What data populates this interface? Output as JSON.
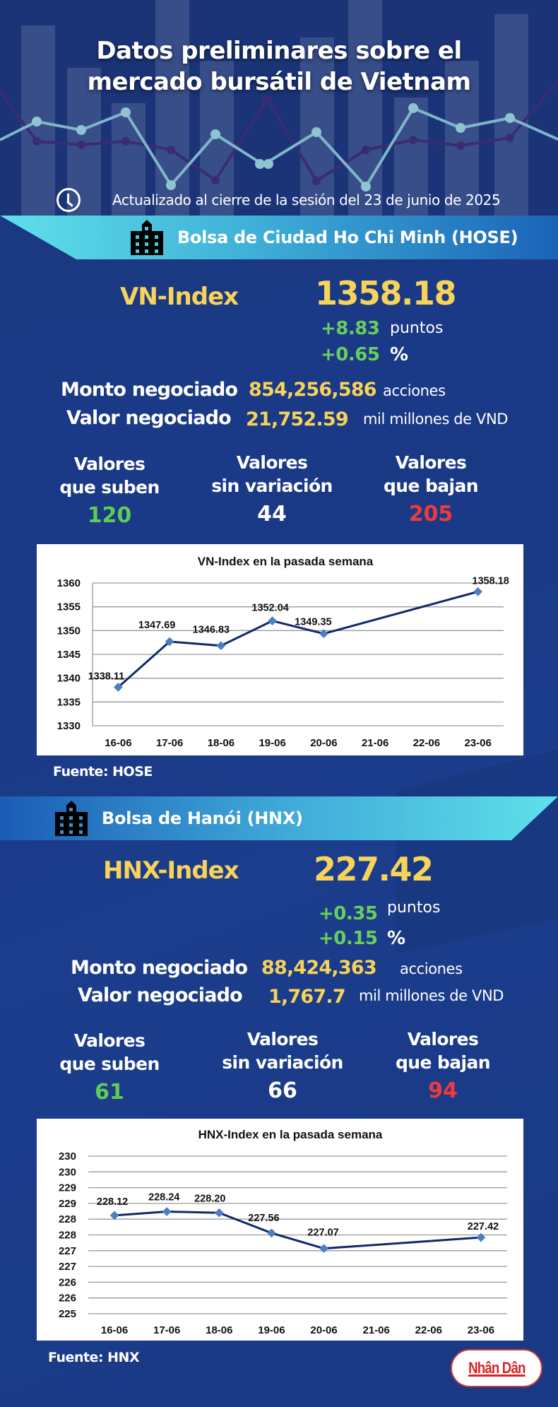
{
  "header": {
    "title_line1": "Datos preliminares sobre el",
    "title_line2": "mercado bursátil de Vietnam",
    "updated": "Actualizado al cierre de la sesión del 23 de junio de 2025",
    "clock_icon": "clock-icon"
  },
  "hose": {
    "banner": "Bolsa de Ciudad Ho Chi Minh (HOSE)",
    "index_name": "VN-Index",
    "index_value": "1358.18",
    "change_points": "+8.83",
    "change_points_unit": "puntos",
    "change_pct": "+0.65",
    "change_pct_unit": "%",
    "volume_label": "Monto negociado",
    "volume_value": "854,256,586",
    "volume_unit": "acciones",
    "value_label": "Valor negociado",
    "value_value": "21,752.59",
    "value_unit": "mil millones de VND",
    "advancers_label_1": "Valores",
    "advancers_label_2": "que suben",
    "advancers": "120",
    "unchanged_label_1": "Valores",
    "unchanged_label_2": "sin variación",
    "unchanged": "44",
    "decliners_label_1": "Valores",
    "decliners_label_2": "que bajan",
    "decliners": "205",
    "source": "Fuente: HOSE"
  },
  "hnx": {
    "banner": "Bolsa de Hanói (HNX)",
    "index_name": "HNX-Index",
    "index_value": "227.42",
    "change_points": "+0.35",
    "change_points_unit": "puntos",
    "change_pct": "+0.15",
    "change_pct_unit": "%",
    "volume_label": "Monto negociado",
    "volume_value": "88,424,363",
    "volume_unit": "acciones",
    "value_label": "Valor negociado",
    "value_value": "1,767.7",
    "value_unit": "mil millones de VND",
    "advancers_label_1": "Valores",
    "advancers_label_2": "que suben",
    "advancers": "61",
    "unchanged_label_1": "Valores",
    "unchanged_label_2": "sin variación",
    "unchanged": "66",
    "decliners_label_1": "Valores",
    "decliners_label_2": "que bajan",
    "decliners": "94",
    "source": "Fuente:  HNX"
  },
  "logo": "Nhân Dân",
  "colors": {
    "background": "#1a3780",
    "index_yellow": "#f7d35a",
    "up_green": "#5fcc52",
    "down_red": "#ef3a3d",
    "line_navy": "#0f2a6b",
    "marker_blue": "#4a7fc1"
  },
  "chart_data": [
    {
      "type": "line",
      "title": "VN-Index en la pasada semana",
      "categories": [
        "16-06",
        "17-06",
        "18-06",
        "19-06",
        "20-06",
        "21-06",
        "22-06",
        "23-06"
      ],
      "x_points": [
        "16-06",
        "17-06",
        "18-06",
        "19-06",
        "20-06",
        "23-06"
      ],
      "values": [
        1338.11,
        1347.69,
        1346.83,
        1352.04,
        1349.35,
        1358.18
      ],
      "data_labels": [
        "1338.11",
        "1347.69",
        "1346.83",
        "1352.04",
        "1349.35",
        "1358.18"
      ],
      "yticks": [
        "1360",
        "1355",
        "1350",
        "1345",
        "1340",
        "1335",
        "1330"
      ],
      "ylim": [
        1330,
        1360
      ],
      "xlabel": "",
      "ylabel": "",
      "grid": true,
      "legend": "none"
    },
    {
      "type": "line",
      "title": "HNX-Index en la pasada semana",
      "categories": [
        "16-06",
        "17-06",
        "18-06",
        "19-06",
        "20-06",
        "21-06",
        "22-06",
        "23-06"
      ],
      "x_points": [
        "16-06",
        "17-06",
        "18-06",
        "19-06",
        "20-06",
        "23-06"
      ],
      "values": [
        228.12,
        228.24,
        228.2,
        227.56,
        227.07,
        227.42
      ],
      "data_labels": [
        "228.12",
        "228.24",
        "228.20",
        "227.56",
        "227.07",
        "227.42"
      ],
      "yticks": [
        "230",
        "230",
        "229",
        "229",
        "228",
        "228",
        "227",
        "227",
        "226",
        "226",
        "225"
      ],
      "ylim": [
        225,
        230
      ],
      "xlabel": "",
      "ylabel": "",
      "grid": true,
      "legend": "none"
    }
  ]
}
